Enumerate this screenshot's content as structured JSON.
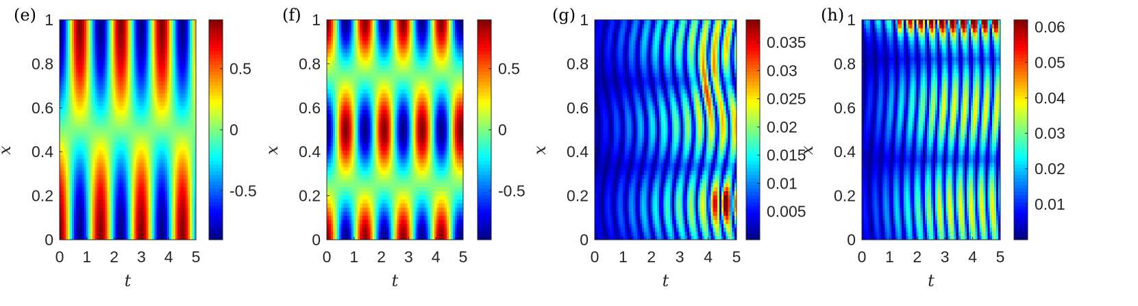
{
  "chart_data": [
    {
      "type": "heatmap",
      "panel_label": "(e)",
      "field": "standing",
      "xlabel": "t",
      "ylabel": "x",
      "xlim": [
        0,
        5
      ],
      "ylim": [
        0,
        1
      ],
      "xticks": [
        "0",
        "1",
        "2",
        "3",
        "4",
        "5"
      ],
      "yticks": [
        "0",
        "0.2",
        "0.4",
        "0.6",
        "0.8",
        "1"
      ],
      "colorbar": {
        "range": [
          -0.9,
          0.9
        ],
        "ticks": [
          -0.5,
          0,
          0.5
        ],
        "tick_labels": [
          "-0.5",
          "0",
          "0.5"
        ]
      },
      "colormap": "jet"
    },
    {
      "type": "heatmap",
      "panel_label": "(f)",
      "field": "bimodal",
      "xlabel": "t",
      "ylabel": "x",
      "xlim": [
        0,
        5
      ],
      "ylim": [
        0,
        1
      ],
      "xticks": [
        "0",
        "1",
        "2",
        "3",
        "4",
        "5"
      ],
      "yticks": [
        "0",
        "0.2",
        "0.4",
        "0.6",
        "0.8",
        "1"
      ],
      "colorbar": {
        "range": [
          -0.9,
          0.9
        ],
        "ticks": [
          -0.5,
          0,
          0.5
        ],
        "tick_labels": [
          "-0.5",
          "0",
          "0.5"
        ]
      },
      "colormap": "jet"
    },
    {
      "type": "heatmap",
      "panel_label": "(g)",
      "field": "error1",
      "xlabel": "t",
      "ylabel": "x",
      "xlim": [
        0,
        5
      ],
      "ylim": [
        0,
        1
      ],
      "xticks": [
        "0",
        "1",
        "2",
        "3",
        "4",
        "5"
      ],
      "yticks": [
        "0",
        "0.2",
        "0.4",
        "0.6",
        "0.8",
        "1"
      ],
      "colorbar": {
        "range": [
          0,
          0.039
        ],
        "ticks": [
          0.005,
          0.01,
          0.015,
          0.02,
          0.025,
          0.03,
          0.035
        ],
        "tick_labels": [
          "0.005",
          "0.01",
          "0.015",
          "0.02",
          "0.025",
          "0.03",
          "0.035"
        ]
      },
      "colormap": "jet"
    },
    {
      "type": "heatmap",
      "panel_label": "(h)",
      "field": "error2",
      "xlabel": "t",
      "ylabel": "x",
      "xlim": [
        0,
        5
      ],
      "ylim": [
        0,
        1
      ],
      "xticks": [
        "0",
        "1",
        "2",
        "3",
        "4",
        "5"
      ],
      "yticks": [
        "0",
        "0.2",
        "0.4",
        "0.6",
        "0.8",
        "1"
      ],
      "colorbar": {
        "range": [
          0,
          0.062
        ],
        "ticks": [
          0.01,
          0.02,
          0.03,
          0.04,
          0.05,
          0.06
        ],
        "tick_labels": [
          "0.01",
          "0.02",
          "0.03",
          "0.04",
          "0.05",
          "0.06"
        ]
      },
      "colormap": "jet"
    }
  ]
}
